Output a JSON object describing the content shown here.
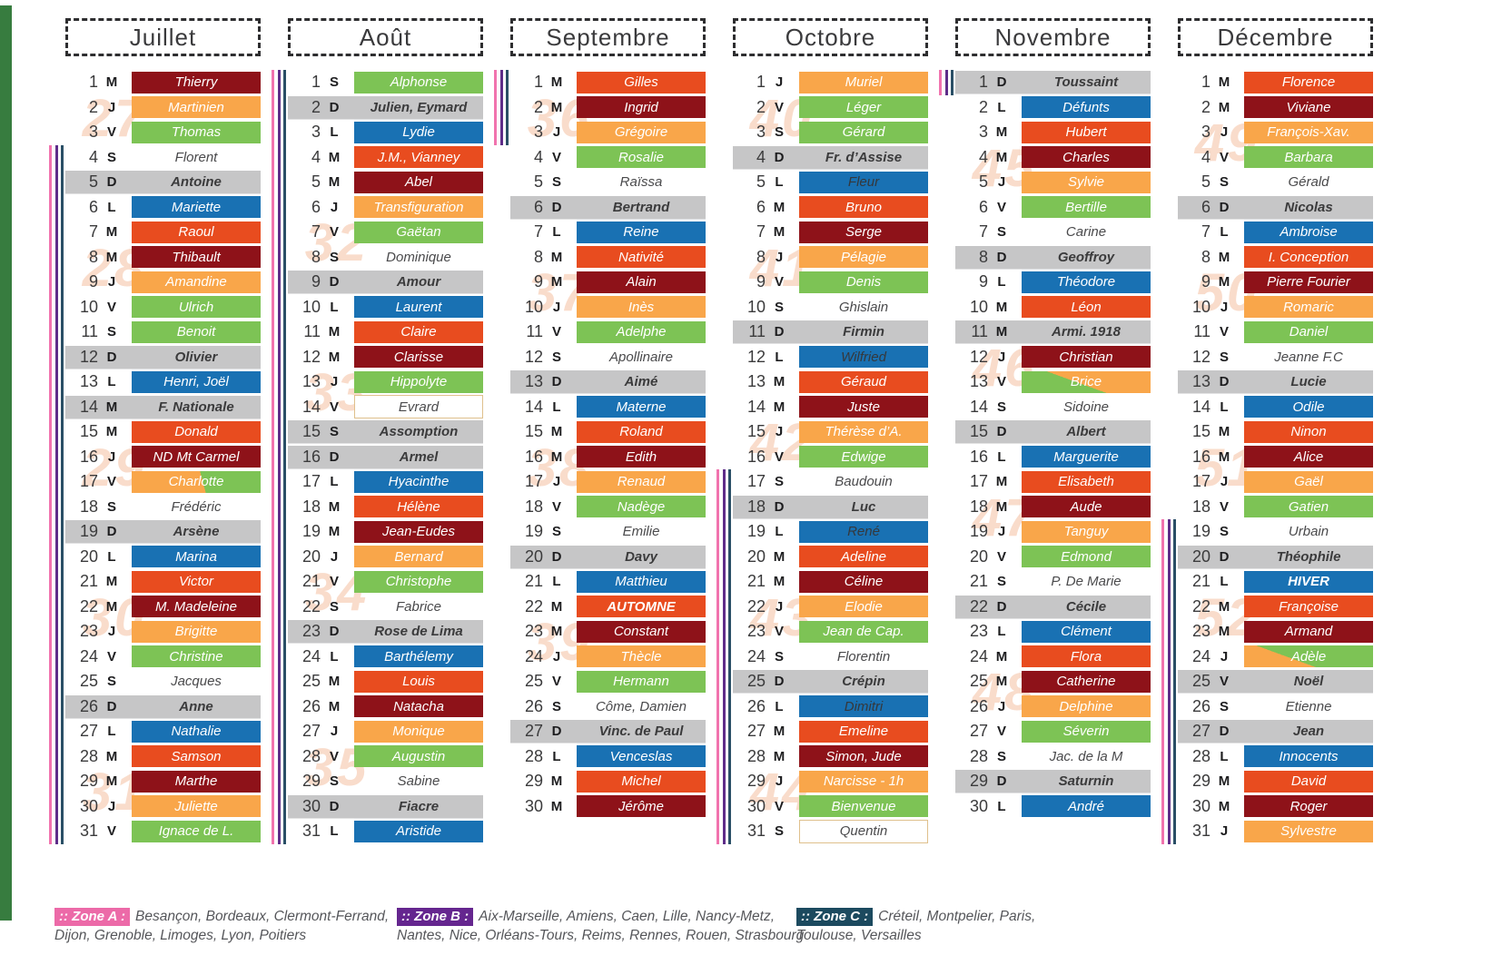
{
  "colors": {
    "band_red": "#e84c1f",
    "band_darkred": "#8e1219",
    "band_orange": "#f9a64a",
    "band_green": "#7dc355",
    "band_blue": "#1971b3",
    "sunday_gray": "#c6c6c7",
    "week_number": "#f9dccb",
    "left_bar_green": "#377c3f",
    "outlined_cell_border": "#dfc08c"
  },
  "stripe_colors": [
    "#f173ae",
    "#5e2d89",
    "#2a4f66"
  ],
  "months": [
    {
      "name": "Juillet",
      "weeks": [
        [
          27,
          2
        ],
        [
          28,
          8
        ],
        [
          29,
          16
        ],
        [
          30,
          22
        ],
        [
          31,
          29
        ]
      ],
      "stripes": [
        4,
        31
      ],
      "days": [
        [
          1,
          "M",
          "Thierry",
          "m"
        ],
        [
          2,
          "J",
          "Martinien",
          "o"
        ],
        [
          3,
          "V",
          "Thomas",
          "g"
        ],
        [
          4,
          "S",
          "Florent",
          "w"
        ],
        [
          5,
          "D",
          "Antoine",
          "s"
        ],
        [
          6,
          "L",
          "Mariette",
          "b"
        ],
        [
          7,
          "M",
          "Raoul",
          "r"
        ],
        [
          8,
          "M",
          "Thibault",
          "m"
        ],
        [
          9,
          "J",
          "Amandine",
          "o"
        ],
        [
          10,
          "V",
          "Ulrich",
          "g"
        ],
        [
          11,
          "S",
          "Benoit",
          "g"
        ],
        [
          12,
          "D",
          "Olivier",
          "s"
        ],
        [
          13,
          "L",
          "Henri, Joël",
          "b"
        ],
        [
          14,
          "M",
          "F. Nationale",
          "s"
        ],
        [
          15,
          "M",
          "Donald",
          "r"
        ],
        [
          16,
          "J",
          "ND Mt Carmel",
          "m"
        ],
        [
          17,
          "V",
          "Charlotte",
          "og1"
        ],
        [
          18,
          "S",
          "Frédéric",
          "w"
        ],
        [
          19,
          "D",
          "Arsène",
          "s"
        ],
        [
          20,
          "L",
          "Marina",
          "b"
        ],
        [
          21,
          "M",
          "Victor",
          "r"
        ],
        [
          22,
          "M",
          "M. Madeleine",
          "m"
        ],
        [
          23,
          "J",
          "Brigitte",
          "o"
        ],
        [
          24,
          "V",
          "Christine",
          "g"
        ],
        [
          25,
          "S",
          "Jacques",
          "w"
        ],
        [
          26,
          "D",
          "Anne",
          "s"
        ],
        [
          27,
          "L",
          "Nathalie",
          "b"
        ],
        [
          28,
          "M",
          "Samson",
          "r"
        ],
        [
          29,
          "M",
          "Marthe",
          "m"
        ],
        [
          30,
          "J",
          "Juliette",
          "o"
        ],
        [
          31,
          "V",
          "Ignace de L.",
          "g"
        ]
      ]
    },
    {
      "name": "Août",
      "weeks": [
        [
          32,
          7
        ],
        [
          33,
          13
        ],
        [
          34,
          21
        ],
        [
          35,
          28
        ]
      ],
      "stripes": [
        1,
        31
      ],
      "days": [
        [
          1,
          "S",
          "Alphonse",
          "g"
        ],
        [
          2,
          "D",
          "Julien, Eymard",
          "s"
        ],
        [
          3,
          "L",
          "Lydie",
          "b"
        ],
        [
          4,
          "M",
          "J.M., Vianney",
          "r"
        ],
        [
          5,
          "M",
          "Abel",
          "m"
        ],
        [
          6,
          "J",
          "Transfiguration",
          "o"
        ],
        [
          7,
          "V",
          "Gaëtan",
          "g"
        ],
        [
          8,
          "S",
          "Dominique",
          "w"
        ],
        [
          9,
          "D",
          "Amour",
          "s"
        ],
        [
          10,
          "L",
          "Laurent",
          "b"
        ],
        [
          11,
          "M",
          "Claire",
          "r"
        ],
        [
          12,
          "M",
          "Clarisse",
          "m"
        ],
        [
          13,
          "J",
          "Hippolyte",
          "g"
        ],
        [
          14,
          "V",
          "Evrard",
          "wb"
        ],
        [
          15,
          "S",
          "Assomption",
          "s"
        ],
        [
          16,
          "D",
          "Armel",
          "s"
        ],
        [
          17,
          "L",
          "Hyacinthe",
          "b"
        ],
        [
          18,
          "M",
          "Hélène",
          "r"
        ],
        [
          19,
          "M",
          "Jean-Eudes",
          "m"
        ],
        [
          20,
          "J",
          "Bernard",
          "o"
        ],
        [
          21,
          "V",
          "Christophe",
          "g"
        ],
        [
          22,
          "S",
          "Fabrice",
          "w"
        ],
        [
          23,
          "D",
          "Rose de Lima",
          "s"
        ],
        [
          24,
          "L",
          "Barthélemy",
          "b"
        ],
        [
          25,
          "M",
          "Louis",
          "r"
        ],
        [
          26,
          "M",
          "Natacha",
          "m"
        ],
        [
          27,
          "J",
          "Monique",
          "o"
        ],
        [
          28,
          "V",
          "Augustin",
          "g"
        ],
        [
          29,
          "S",
          "Sabine",
          "w"
        ],
        [
          30,
          "D",
          "Fiacre",
          "s"
        ],
        [
          31,
          "L",
          "Aristide",
          "b"
        ]
      ]
    },
    {
      "name": "Septembre",
      "weeks": [
        [
          36,
          2
        ],
        [
          37,
          9
        ],
        [
          38,
          16
        ],
        [
          39,
          23
        ]
      ],
      "stripes": [
        1,
        3
      ],
      "days": [
        [
          1,
          "M",
          "Gilles",
          "r"
        ],
        [
          2,
          "M",
          "Ingrid",
          "m"
        ],
        [
          3,
          "J",
          "Grégoire",
          "o"
        ],
        [
          4,
          "V",
          "Rosalie",
          "g"
        ],
        [
          5,
          "S",
          "Raïssa",
          "w"
        ],
        [
          6,
          "D",
          "Bertrand",
          "s"
        ],
        [
          7,
          "L",
          "Reine",
          "b"
        ],
        [
          8,
          "M",
          "Nativité",
          "r"
        ],
        [
          9,
          "M",
          "Alain",
          "m"
        ],
        [
          10,
          "J",
          "Inès",
          "o"
        ],
        [
          11,
          "V",
          "Adelphe",
          "g"
        ],
        [
          12,
          "S",
          "Apollinaire",
          "w"
        ],
        [
          13,
          "D",
          "Aimé",
          "s"
        ],
        [
          14,
          "L",
          "Materne",
          "b"
        ],
        [
          15,
          "M",
          "Roland",
          "r"
        ],
        [
          16,
          "M",
          "Edith",
          "m"
        ],
        [
          17,
          "J",
          "Renaud",
          "o"
        ],
        [
          18,
          "V",
          "Nadège",
          "g"
        ],
        [
          19,
          "S",
          "Emilie",
          "w"
        ],
        [
          20,
          "D",
          "Davy",
          "s"
        ],
        [
          21,
          "L",
          "Matthieu",
          "b"
        ],
        [
          22,
          "M",
          "AUTOMNE",
          "r",
          "bold"
        ],
        [
          23,
          "M",
          "Constant",
          "m"
        ],
        [
          24,
          "J",
          "Thècle",
          "o"
        ],
        [
          25,
          "V",
          "Hermann",
          "g"
        ],
        [
          26,
          "S",
          "Côme, Damien",
          "w"
        ],
        [
          27,
          "D",
          "Vinc. de Paul",
          "s"
        ],
        [
          28,
          "L",
          "Venceslas",
          "b"
        ],
        [
          29,
          "M",
          "Michel",
          "r"
        ],
        [
          30,
          "M",
          "Jérôme",
          "m"
        ]
      ]
    },
    {
      "name": "Octobre",
      "weeks": [
        [
          40,
          2
        ],
        [
          41,
          8
        ],
        [
          42,
          15
        ],
        [
          43,
          22
        ],
        [
          44,
          29
        ]
      ],
      "stripes": [
        17,
        31
      ],
      "days": [
        [
          1,
          "J",
          "Muriel",
          "o"
        ],
        [
          2,
          "V",
          "Léger",
          "g"
        ],
        [
          3,
          "S",
          "Gérard",
          "g"
        ],
        [
          4,
          "D",
          "Fr. d’Assise",
          "s"
        ],
        [
          5,
          "L",
          "Fleur",
          "b",
          "dark"
        ],
        [
          6,
          "M",
          "Bruno",
          "r"
        ],
        [
          7,
          "M",
          "Serge",
          "m"
        ],
        [
          8,
          "J",
          "Pélagie",
          "o"
        ],
        [
          9,
          "V",
          "Denis",
          "g"
        ],
        [
          10,
          "S",
          "Ghislain",
          "w"
        ],
        [
          11,
          "D",
          "Firmin",
          "s"
        ],
        [
          12,
          "L",
          "Wilfried",
          "b",
          "dark"
        ],
        [
          13,
          "M",
          "Géraud",
          "r"
        ],
        [
          14,
          "M",
          "Juste",
          "m"
        ],
        [
          15,
          "J",
          "Thérèse d’A.",
          "o"
        ],
        [
          16,
          "V",
          "Edwige",
          "g"
        ],
        [
          17,
          "S",
          "Baudouin",
          "w"
        ],
        [
          18,
          "D",
          "Luc",
          "s"
        ],
        [
          19,
          "L",
          "René",
          "b",
          "dark"
        ],
        [
          20,
          "M",
          "Adeline",
          "r"
        ],
        [
          21,
          "M",
          "Céline",
          "m"
        ],
        [
          22,
          "J",
          "Elodie",
          "o"
        ],
        [
          23,
          "V",
          "Jean de Cap.",
          "g"
        ],
        [
          24,
          "S",
          "Florentin",
          "w"
        ],
        [
          25,
          "D",
          "Crépin",
          "s"
        ],
        [
          26,
          "L",
          "Dimitri",
          "b",
          "dark"
        ],
        [
          27,
          "M",
          "Emeline",
          "r"
        ],
        [
          28,
          "M",
          "Simon, Jude",
          "m"
        ],
        [
          29,
          "J",
          "Narcisse - 1h",
          "o"
        ],
        [
          30,
          "V",
          "Bienvenue",
          "g"
        ],
        [
          31,
          "S",
          "Quentin",
          "wb"
        ]
      ]
    },
    {
      "name": "Novembre",
      "weeks": [
        [
          45,
          4
        ],
        [
          46,
          12
        ],
        [
          47,
          18
        ],
        [
          48,
          25
        ]
      ],
      "stripes": [
        1,
        1
      ],
      "days": [
        [
          1,
          "D",
          "Toussaint",
          "s"
        ],
        [
          2,
          "L",
          "Défunts",
          "b"
        ],
        [
          3,
          "M",
          "Hubert",
          "r"
        ],
        [
          4,
          "M",
          "Charles",
          "m"
        ],
        [
          5,
          "J",
          "Sylvie",
          "o"
        ],
        [
          6,
          "V",
          "Bertille",
          "g"
        ],
        [
          7,
          "S",
          "Carine",
          "w"
        ],
        [
          8,
          "D",
          "Geoffroy",
          "s"
        ],
        [
          9,
          "L",
          "Théodore",
          "b"
        ],
        [
          10,
          "M",
          "Léon",
          "r"
        ],
        [
          11,
          "M",
          "Armi. 1918",
          "s"
        ],
        [
          12,
          "J",
          "Christian",
          "m"
        ],
        [
          13,
          "V",
          "Brice",
          "og2"
        ],
        [
          14,
          "S",
          "Sidoine",
          "w"
        ],
        [
          15,
          "D",
          "Albert",
          "s"
        ],
        [
          16,
          "L",
          "Marguerite",
          "b"
        ],
        [
          17,
          "M",
          "Elisabeth",
          "r"
        ],
        [
          18,
          "M",
          "Aude",
          "m"
        ],
        [
          19,
          "J",
          "Tanguy",
          "o"
        ],
        [
          20,
          "V",
          "Edmond",
          "g"
        ],
        [
          21,
          "S",
          "P. De Marie",
          "w"
        ],
        [
          22,
          "D",
          "Cécile",
          "s"
        ],
        [
          23,
          "L",
          "Clément",
          "b"
        ],
        [
          24,
          "M",
          "Flora",
          "r"
        ],
        [
          25,
          "M",
          "Catherine",
          "m"
        ],
        [
          26,
          "J",
          "Delphine",
          "o"
        ],
        [
          27,
          "V",
          "Séverin",
          "g"
        ],
        [
          28,
          "S",
          "Jac. de la M",
          "w"
        ],
        [
          29,
          "D",
          "Saturnin",
          "s"
        ],
        [
          30,
          "L",
          "André",
          "b"
        ]
      ]
    },
    {
      "name": "Décembre",
      "weeks": [
        [
          49,
          3
        ],
        [
          50,
          9
        ],
        [
          51,
          16
        ],
        [
          52,
          22
        ]
      ],
      "stripes": [
        19,
        31
      ],
      "days": [
        [
          1,
          "M",
          "Florence",
          "r"
        ],
        [
          2,
          "M",
          "Viviane",
          "m"
        ],
        [
          3,
          "J",
          "François-Xav.",
          "o"
        ],
        [
          4,
          "V",
          "Barbara",
          "g"
        ],
        [
          5,
          "S",
          "Gérald",
          "w"
        ],
        [
          6,
          "D",
          "Nicolas",
          "s"
        ],
        [
          7,
          "L",
          "Ambroise",
          "b"
        ],
        [
          8,
          "M",
          "I. Conception",
          "r"
        ],
        [
          9,
          "M",
          "Pierre Fourier",
          "m"
        ],
        [
          10,
          "J",
          "Romaric",
          "o"
        ],
        [
          11,
          "V",
          "Daniel",
          "g"
        ],
        [
          12,
          "S",
          "Jeanne F.C",
          "w"
        ],
        [
          13,
          "D",
          "Lucie",
          "s"
        ],
        [
          14,
          "L",
          "Odile",
          "b"
        ],
        [
          15,
          "M",
          "Ninon",
          "r"
        ],
        [
          16,
          "M",
          "Alice",
          "m"
        ],
        [
          17,
          "J",
          "Gaël",
          "o"
        ],
        [
          18,
          "V",
          "Gatien",
          "g"
        ],
        [
          19,
          "S",
          "Urbain",
          "w"
        ],
        [
          20,
          "D",
          "Théophile",
          "s"
        ],
        [
          21,
          "L",
          "HIVER",
          "b",
          "bold"
        ],
        [
          22,
          "M",
          "Françoise",
          "r"
        ],
        [
          23,
          "M",
          "Armand",
          "m"
        ],
        [
          24,
          "J",
          "Adèle",
          "go2"
        ],
        [
          25,
          "V",
          "Noël",
          "s"
        ],
        [
          26,
          "S",
          "Etienne",
          "w"
        ],
        [
          27,
          "D",
          "Jean",
          "s"
        ],
        [
          28,
          "L",
          "Innocents",
          "b"
        ],
        [
          29,
          "M",
          "David",
          "r"
        ],
        [
          30,
          "M",
          "Roger",
          "m"
        ],
        [
          31,
          "J",
          "Sylvestre",
          "o"
        ]
      ]
    }
  ],
  "zones": [
    {
      "label": ":: Zone A :",
      "color": "#ec6aa8",
      "cities": "Besançon, Bordeaux, Clermont-Ferrand, Dijon, Grenoble, Limoges, Lyon, Poitiers"
    },
    {
      "label": ":: Zone B :",
      "color": "#65268f",
      "cities": "Aix-Marseille, Amiens, Caen, Lille, Nancy-Metz, Nantes, Nice, Orléans-Tours, Reims, Rennes, Rouen, Strasbourg"
    },
    {
      "label": ":: Zone C :",
      "color": "#1c4a5f",
      "cities": "Créteil, Montpelier, Paris, Toulouse, Versailles"
    }
  ]
}
